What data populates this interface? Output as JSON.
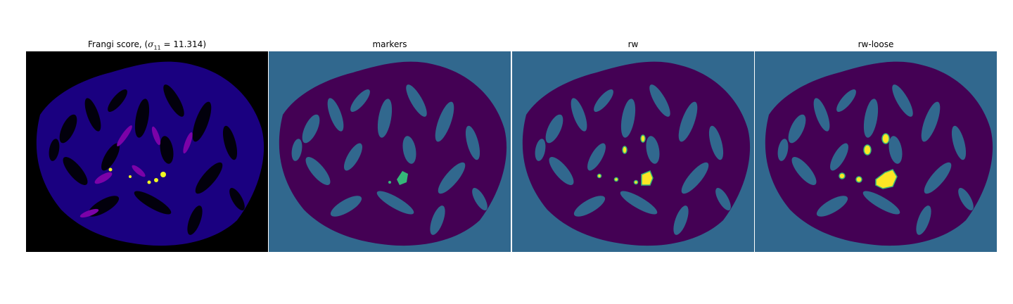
{
  "figure": {
    "panels": [
      {
        "id": "frangi",
        "title_prefix": "Frangi score, (",
        "sigma_symbol": "σ",
        "sigma_sub": "11",
        "sigma_value": " = 11.314)",
        "background": "#000000",
        "colormap": "plasma"
      },
      {
        "id": "markers",
        "title": "markers",
        "background": "#31688e",
        "colormap": "viridis"
      },
      {
        "id": "rw",
        "title": "rw",
        "background": "#31688e",
        "colormap": "viridis"
      },
      {
        "id": "rw-loose",
        "title": "rw-loose",
        "background": "#31688e",
        "colormap": "viridis"
      }
    ],
    "colors": {
      "tissue_dark": "#440154",
      "label_green": "#35b779",
      "label_yellow": "#fde725",
      "label_bg": "#31688e",
      "frangi_low": "#1a0080",
      "frangi_mid": "#7b02a8",
      "frangi_high": "#f0f921"
    }
  }
}
